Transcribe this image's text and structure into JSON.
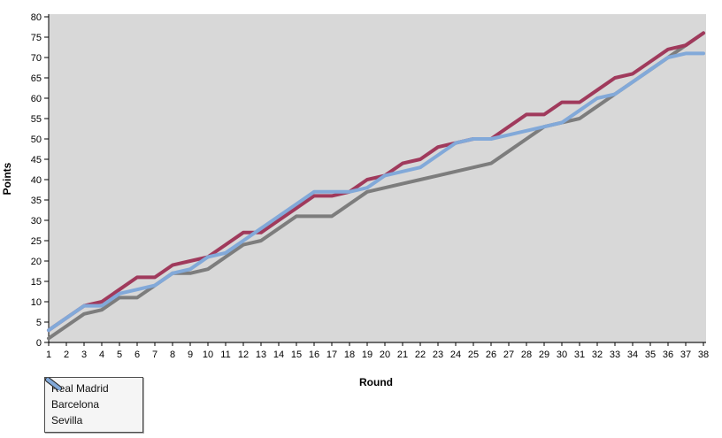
{
  "colors": {
    "page_background": "#ffffff",
    "plot_background": "#d8d8d8",
    "axis": "#000000",
    "legend_border": "#4d4d4d",
    "legend_background": "#f5f5f5"
  },
  "chart_data": {
    "type": "line",
    "title": "",
    "xlabel": "Round",
    "ylabel": "Points",
    "ylim": [
      0,
      80
    ],
    "xlim": [
      1,
      38
    ],
    "grid": false,
    "legend_position": "bottom-left",
    "y_ticks": [
      0,
      5,
      10,
      15,
      20,
      25,
      30,
      35,
      40,
      45,
      50,
      55,
      60,
      65,
      70,
      75,
      80
    ],
    "x": [
      1,
      2,
      3,
      4,
      5,
      6,
      7,
      8,
      9,
      10,
      11,
      12,
      13,
      14,
      15,
      16,
      17,
      18,
      19,
      20,
      21,
      22,
      23,
      24,
      25,
      26,
      27,
      28,
      29,
      30,
      31,
      32,
      33,
      34,
      35,
      36,
      37,
      38
    ],
    "series": [
      {
        "name": "Real Madrid",
        "color": "#7d7d7d",
        "values": [
          1,
          4,
          7,
          8,
          11,
          11,
          14,
          17,
          17,
          18,
          21,
          24,
          25,
          28,
          31,
          31,
          31,
          34,
          37,
          38,
          39,
          40,
          41,
          42,
          43,
          44,
          47,
          50,
          53,
          54,
          55,
          58,
          61,
          64,
          67,
          70,
          73,
          76
        ]
      },
      {
        "name": "Barcelona",
        "color": "#a03a5c",
        "values": [
          3,
          6,
          9,
          10,
          13,
          16,
          16,
          19,
          20,
          21,
          24,
          27,
          27,
          30,
          33,
          36,
          36,
          37,
          40,
          41,
          44,
          45,
          48,
          49,
          50,
          50,
          53,
          56,
          56,
          59,
          59,
          62,
          65,
          66,
          69,
          72,
          73,
          76
        ]
      },
      {
        "name": "Sevilla",
        "color": "#82a9d9",
        "values": [
          3,
          6,
          9,
          9,
          12,
          13,
          14,
          17,
          18,
          21,
          22,
          25,
          28,
          31,
          34,
          37,
          37,
          37,
          38,
          41,
          42,
          43,
          46,
          49,
          50,
          50,
          51,
          52,
          53,
          54,
          57,
          60,
          61,
          64,
          67,
          70,
          71,
          71
        ]
      }
    ]
  }
}
